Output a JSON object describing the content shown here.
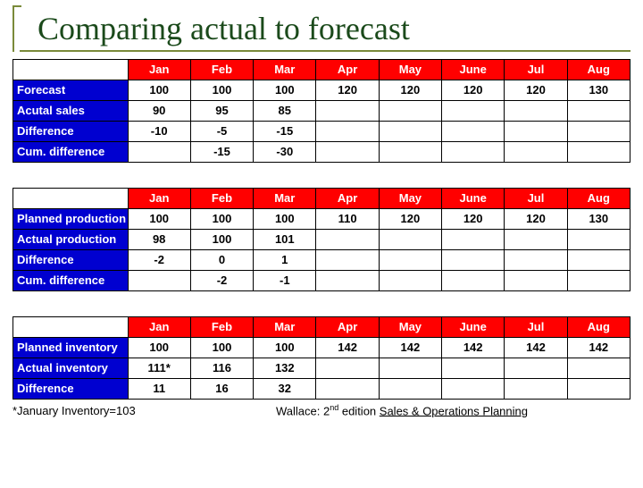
{
  "title": "Comparing actual to forecast",
  "months": [
    "Jan",
    "Feb",
    "Mar",
    "Apr",
    "May",
    "June",
    "Jul",
    "Aug"
  ],
  "colors": {
    "header_bg": "#ff0000",
    "header_fg": "#ffffff",
    "label_bg": "#0000d0",
    "label_fg": "#ffffff",
    "title_fg": "#1b4a1b",
    "rule": "#7a8a3a"
  },
  "tables": [
    {
      "rows": [
        {
          "label": "Forecast",
          "cells": [
            "100",
            "100",
            "100",
            "120",
            "120",
            "120",
            "120",
            "130"
          ]
        },
        {
          "label": "Acutal sales",
          "cells": [
            "90",
            "95",
            "85",
            "",
            "",
            "",
            "",
            ""
          ]
        },
        {
          "label": "Difference",
          "cells": [
            "-10",
            "-5",
            "-15",
            "",
            "",
            "",
            "",
            ""
          ]
        },
        {
          "label": "Cum. difference",
          "cells": [
            "",
            "-15",
            "-30",
            "",
            "",
            "",
            "",
            ""
          ]
        }
      ]
    },
    {
      "rows": [
        {
          "label": "Planned production",
          "cells": [
            "100",
            "100",
            "100",
            "110",
            "120",
            "120",
            "120",
            "130"
          ]
        },
        {
          "label": "Actual production",
          "cells": [
            "98",
            "100",
            "101",
            "",
            "",
            "",
            "",
            ""
          ]
        },
        {
          "label": "Difference",
          "cells": [
            "-2",
            "0",
            "1",
            "",
            "",
            "",
            "",
            ""
          ]
        },
        {
          "label": "Cum. difference",
          "cells": [
            "",
            "-2",
            "-1",
            "",
            "",
            "",
            "",
            ""
          ]
        }
      ]
    },
    {
      "rows": [
        {
          "label": "Planned inventory",
          "cells": [
            "100",
            "100",
            "100",
            "142",
            "142",
            "142",
            "142",
            "142"
          ]
        },
        {
          "label": "Actual inventory",
          "cells": [
            "111*",
            "116",
            "132",
            "",
            "",
            "",
            "",
            ""
          ]
        },
        {
          "label": "Difference",
          "cells": [
            "11",
            "16",
            "32",
            "",
            "",
            "",
            "",
            ""
          ]
        }
      ]
    }
  ],
  "footnote_left": "*January Inventory=103",
  "citation": {
    "prefix": "Wallace: 2",
    "sup": "nd",
    "mid": " edition ",
    "underlined": "Sales & Operations Planning"
  }
}
